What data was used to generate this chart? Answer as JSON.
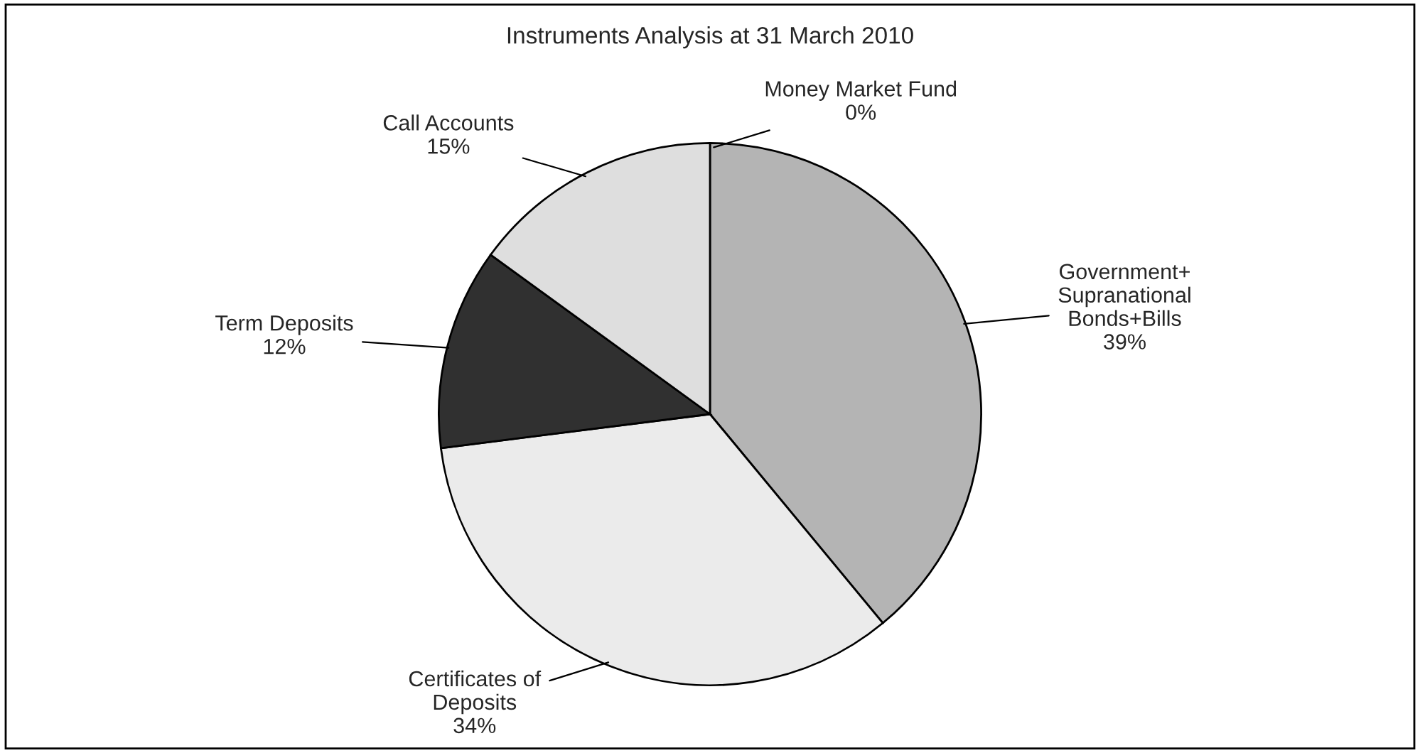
{
  "chart_data": {
    "type": "pie",
    "title": "Instruments Analysis at 31 March 2010",
    "categories": [
      "Money Market Fund",
      "Government+\nSupranational\nBonds+Bills",
      "Certificates of\nDeposits",
      "Term Deposits",
      "Call Accounts"
    ],
    "values": [
      0,
      39,
      34,
      12,
      15
    ],
    "value_labels": [
      "0%",
      "39%",
      "34%",
      "12%",
      "15%"
    ],
    "colors": [
      "#ffffff",
      "#b4b4b4",
      "#ebebeb",
      "#303030",
      "#dedede"
    ]
  }
}
